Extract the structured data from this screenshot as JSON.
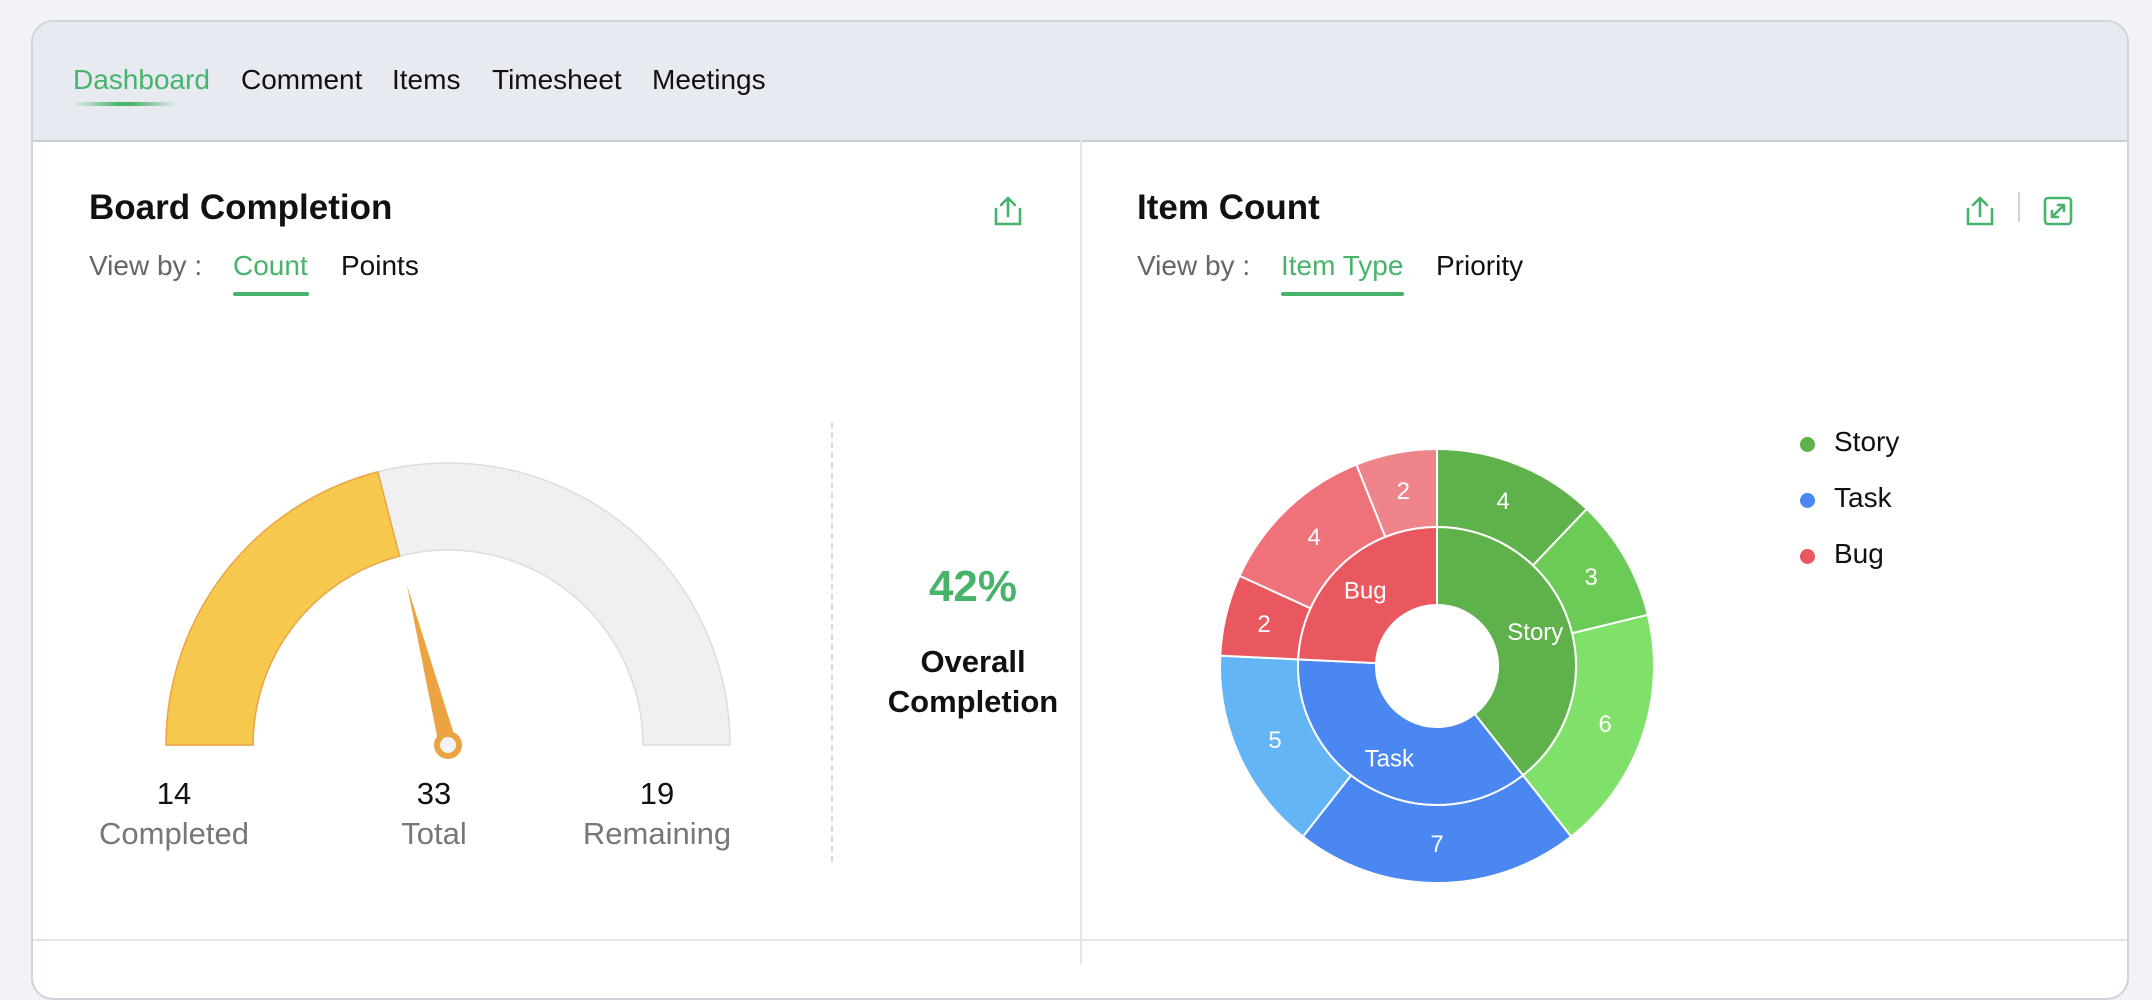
{
  "nav": {
    "tabs": [
      {
        "label": "Dashboard",
        "active": true
      },
      {
        "label": "Comment"
      },
      {
        "label": "Items"
      },
      {
        "label": "Timesheet"
      },
      {
        "label": "Meetings"
      }
    ]
  },
  "board_completion": {
    "title": "Board Completion",
    "view_by_label": "View by :",
    "options": [
      "Count",
      "Points"
    ],
    "selected_option": "Count",
    "stats": {
      "completed_value": "14",
      "completed_label": "Completed",
      "total_value": "33",
      "total_label": "Total",
      "remaining_value": "19",
      "remaining_label": "Remaining"
    },
    "percent": "42%",
    "overall_label": "Overall Completion"
  },
  "item_count": {
    "title": "Item Count",
    "view_by_label": "View by :",
    "options": [
      "Item Type",
      "Priority"
    ],
    "selected_option": "Item Type",
    "legend": [
      {
        "label": "Story",
        "color": "#5fb14b"
      },
      {
        "label": "Task",
        "color": "#4a87f0"
      },
      {
        "label": "Bug",
        "color": "#e8585e"
      }
    ]
  },
  "icons": {
    "export": "export-icon",
    "expand": "expand-icon"
  },
  "chart_data": [
    {
      "type": "gauge",
      "value": 14,
      "max": 33,
      "fraction": 0.42,
      "fill_color": "#f6c94e",
      "track_color": "#f0f0f0",
      "needle_color": "#eca443"
    },
    {
      "type": "pie",
      "subtype": "sunburst",
      "inner": [
        {
          "label": "Story",
          "value": 13,
          "color": "#5fb14b"
        },
        {
          "label": "Task",
          "value": 12,
          "color": "#4a87f0"
        },
        {
          "label": "Bug",
          "value": 8,
          "color": "#e8585e"
        }
      ],
      "outer": [
        {
          "parent": "Story",
          "value": 4,
          "color": "#5fb14b"
        },
        {
          "parent": "Story",
          "value": 3,
          "color": "#6cca56"
        },
        {
          "parent": "Story",
          "value": 6,
          "color": "#7fe06a"
        },
        {
          "parent": "Task",
          "value": 7,
          "color": "#4a87f0"
        },
        {
          "parent": "Task",
          "value": 5,
          "color": "#63b5f6"
        },
        {
          "parent": "Bug",
          "value": 2,
          "color": "#e8585e"
        },
        {
          "parent": "Bug",
          "value": 4,
          "color": "#ef717a"
        },
        {
          "parent": "Bug",
          "value": 2,
          "color": "#f0848b"
        }
      ]
    }
  ]
}
